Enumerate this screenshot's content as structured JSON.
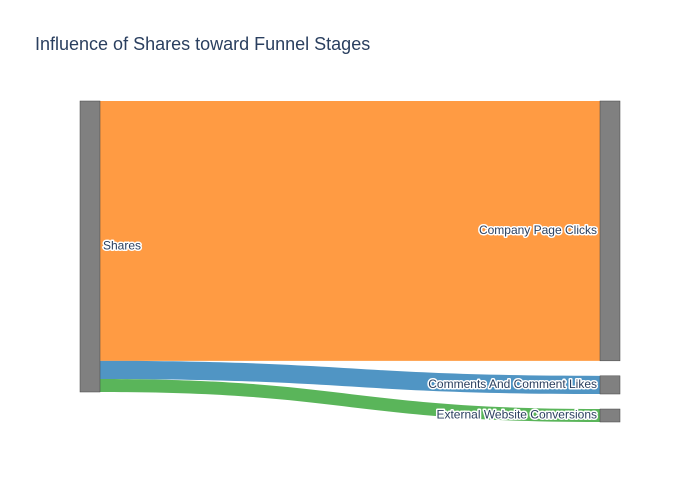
{
  "chart_data": {
    "type": "sankey",
    "title": "Influence of Shares toward Funnel Stages",
    "nodes": [
      {
        "id": "shares",
        "label": "Shares",
        "color": "#808080"
      },
      {
        "id": "company",
        "label": "Company Page Clicks",
        "color": "#808080"
      },
      {
        "id": "comments",
        "label": "Comments And Comment Likes",
        "color": "#808080"
      },
      {
        "id": "external",
        "label": "External Website Conversions",
        "color": "#808080"
      }
    ],
    "links": [
      {
        "source": "shares",
        "target": "company",
        "value": 100,
        "color": "#ff7f0e"
      },
      {
        "source": "shares",
        "target": "comments",
        "value": 7,
        "color": "#1f77b4"
      },
      {
        "source": "shares",
        "target": "external",
        "value": 5,
        "color": "#2ca02c"
      }
    ]
  }
}
